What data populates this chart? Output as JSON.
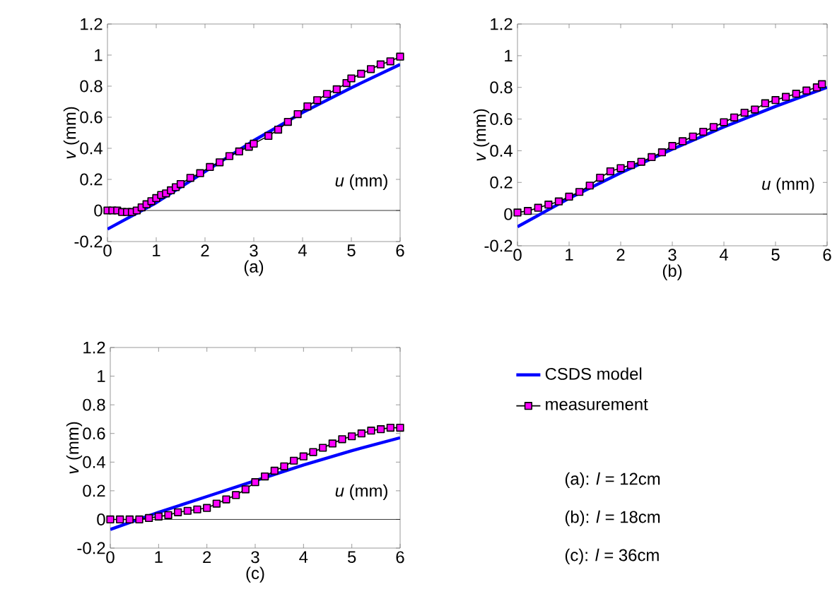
{
  "chart_data": [
    {
      "type": "line",
      "title": "(a)",
      "xlabel": "*u*  (mm)",
      "ylabel": "*v*  (mm)",
      "xlim": [
        0,
        6
      ],
      "ylim": [
        -0.2,
        1.2
      ],
      "xticks": [
        0,
        1,
        2,
        3,
        4,
        5,
        6
      ],
      "yticks": [
        -0.2,
        0,
        0.2,
        0.4,
        0.6,
        0.8,
        1,
        1.2
      ],
      "legend": false,
      "series": [
        {
          "color": "#0000ff",
          "marker": "none",
          "x": [
            0,
            1,
            2,
            3,
            4,
            5,
            6
          ],
          "values": [
            -0.12,
            0.05,
            0.25,
            0.45,
            0.63,
            0.79,
            0.94
          ]
        },
        {
          "color": "#ff00ff",
          "marker": "square",
          "x": [
            0,
            0.1,
            0.2,
            0.3,
            0.4,
            0.5,
            0.6,
            0.7,
            0.8,
            0.9,
            1.0,
            1.1,
            1.2,
            1.3,
            1.4,
            1.5,
            1.7,
            1.9,
            2.1,
            2.3,
            2.5,
            2.7,
            2.9,
            3.0,
            3.3,
            3.5,
            3.7,
            3.9,
            4.1,
            4.3,
            4.5,
            4.7,
            4.9,
            5.0,
            5.2,
            5.4,
            5.6,
            5.8,
            6.0
          ],
          "values": [
            0,
            0,
            0,
            -0.01,
            -0.01,
            -0.01,
            0,
            0.02,
            0.04,
            0.06,
            0.08,
            0.1,
            0.11,
            0.13,
            0.15,
            0.17,
            0.21,
            0.24,
            0.28,
            0.31,
            0.35,
            0.38,
            0.41,
            0.43,
            0.48,
            0.52,
            0.57,
            0.62,
            0.67,
            0.71,
            0.75,
            0.78,
            0.82,
            0.85,
            0.88,
            0.91,
            0.94,
            0.96,
            0.99
          ]
        }
      ]
    },
    {
      "type": "line",
      "title": "(b)",
      "xlabel": "*u*  (mm)",
      "ylabel": "*v*  (mm)",
      "xlim": [
        0,
        6
      ],
      "ylim": [
        -0.2,
        1.2
      ],
      "xticks": [
        0,
        1,
        2,
        3,
        4,
        5,
        6
      ],
      "yticks": [
        -0.2,
        0,
        0.2,
        0.4,
        0.6,
        0.8,
        1,
        1.2
      ],
      "legend": false,
      "series": [
        {
          "color": "#0000ff",
          "marker": "none",
          "x": [
            0,
            1,
            2,
            3,
            4,
            5,
            6
          ],
          "values": [
            -0.08,
            0.1,
            0.26,
            0.41,
            0.55,
            0.68,
            0.8
          ]
        },
        {
          "color": "#ff00ff",
          "marker": "square",
          "x": [
            0,
            0.2,
            0.4,
            0.6,
            0.8,
            1.0,
            1.2,
            1.4,
            1.6,
            1.8,
            2.0,
            2.2,
            2.4,
            2.6,
            2.8,
            3.0,
            3.2,
            3.4,
            3.6,
            3.8,
            4.0,
            4.2,
            4.4,
            4.6,
            4.8,
            5.0,
            5.2,
            5.4,
            5.6,
            5.8,
            5.9
          ],
          "values": [
            0.01,
            0.02,
            0.04,
            0.06,
            0.08,
            0.11,
            0.14,
            0.18,
            0.23,
            0.27,
            0.29,
            0.31,
            0.33,
            0.36,
            0.39,
            0.43,
            0.46,
            0.49,
            0.52,
            0.55,
            0.58,
            0.61,
            0.64,
            0.66,
            0.7,
            0.72,
            0.74,
            0.76,
            0.78,
            0.8,
            0.82
          ]
        }
      ]
    },
    {
      "type": "line",
      "title": "(c)",
      "xlabel": "*u*  (mm)",
      "ylabel": "*v*  (mm)",
      "xlim": [
        0,
        6
      ],
      "ylim": [
        -0.2,
        1.2
      ],
      "xticks": [
        0,
        1,
        2,
        3,
        4,
        5,
        6
      ],
      "yticks": [
        -0.2,
        0,
        0.2,
        0.4,
        0.6,
        0.8,
        1,
        1.2
      ],
      "legend": "right",
      "series": [
        {
          "name": "CSDS model",
          "color": "#0000ff",
          "marker": "none",
          "x": [
            0,
            1,
            2,
            3,
            4,
            5,
            6
          ],
          "values": [
            -0.07,
            0.05,
            0.16,
            0.27,
            0.38,
            0.48,
            0.57
          ]
        },
        {
          "name": "measurement",
          "color": "#ff00ff",
          "marker": "square",
          "x": [
            0,
            0.2,
            0.4,
            0.6,
            0.8,
            1.0,
            1.2,
            1.4,
            1.6,
            1.8,
            2.0,
            2.2,
            2.4,
            2.6,
            2.8,
            3.0,
            3.2,
            3.4,
            3.6,
            3.8,
            4.0,
            4.2,
            4.4,
            4.6,
            4.8,
            5.0,
            5.2,
            5.4,
            5.6,
            5.8,
            6.0
          ],
          "values": [
            0,
            0,
            0,
            0,
            0.01,
            0.02,
            0.03,
            0.05,
            0.06,
            0.07,
            0.08,
            0.11,
            0.14,
            0.17,
            0.21,
            0.26,
            0.3,
            0.34,
            0.37,
            0.41,
            0.44,
            0.47,
            0.5,
            0.53,
            0.56,
            0.58,
            0.6,
            0.62,
            0.63,
            0.64,
            0.64
          ]
        }
      ]
    },
    {
      "type": "other",
      "annotations": [
        "(a): *l* = 12cm",
        "(b): *l* = 18cm",
        "(c): *l* = 36cm"
      ]
    }
  ]
}
